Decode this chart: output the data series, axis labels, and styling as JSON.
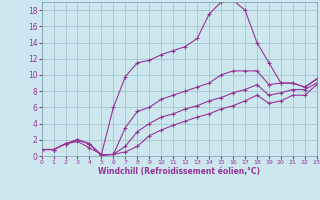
{
  "xlabel": "Windchill (Refroidissement éolien,°C)",
  "bg_color": "#cce8ee",
  "line_color": "#993399",
  "xlim": [
    0,
    23
  ],
  "ylim": [
    0,
    19
  ],
  "xticks": [
    0,
    1,
    2,
    3,
    4,
    5,
    6,
    7,
    8,
    9,
    10,
    11,
    12,
    13,
    14,
    15,
    16,
    17,
    18,
    19,
    20,
    21,
    22,
    23
  ],
  "yticks": [
    0,
    2,
    4,
    6,
    8,
    10,
    12,
    14,
    16,
    18
  ],
  "line1_x": [
    0,
    1,
    2,
    3,
    4,
    5,
    6,
    7,
    8,
    9,
    10,
    11,
    12,
    13,
    14,
    15,
    16,
    17,
    18,
    19,
    20,
    21,
    22,
    23
  ],
  "line1_y": [
    0.8,
    0.8,
    1.5,
    1.8,
    1.0,
    0.2,
    6.0,
    9.8,
    11.5,
    11.8,
    12.5,
    13.0,
    13.5,
    14.5,
    17.5,
    19.0,
    19.2,
    18.0,
    14.0,
    11.5,
    9.0,
    9.0,
    8.5,
    9.5
  ],
  "line2_x": [
    0,
    1,
    2,
    3,
    4,
    5,
    6,
    7,
    8,
    9,
    10,
    11,
    12,
    13,
    14,
    15,
    16,
    17,
    18,
    19,
    20,
    21,
    22,
    23
  ],
  "line2_y": [
    0.8,
    0.8,
    1.5,
    2.0,
    1.5,
    0.1,
    0.2,
    3.5,
    5.5,
    6.0,
    7.0,
    7.5,
    8.0,
    8.5,
    9.0,
    10.0,
    10.5,
    10.5,
    10.5,
    8.8,
    9.0,
    9.0,
    8.5,
    9.5
  ],
  "line3_x": [
    0,
    1,
    2,
    3,
    4,
    5,
    6,
    7,
    8,
    9,
    10,
    11,
    12,
    13,
    14,
    15,
    16,
    17,
    18,
    19,
    20,
    21,
    22,
    23
  ],
  "line3_y": [
    0.8,
    0.8,
    1.5,
    2.0,
    1.5,
    0.1,
    0.2,
    1.2,
    3.0,
    4.0,
    4.8,
    5.2,
    5.8,
    6.2,
    6.8,
    7.2,
    7.8,
    8.2,
    8.8,
    7.5,
    7.8,
    8.2,
    8.2,
    9.0
  ],
  "line4_x": [
    0,
    1,
    2,
    3,
    4,
    5,
    6,
    7,
    8,
    9,
    10,
    11,
    12,
    13,
    14,
    15,
    16,
    17,
    18,
    19,
    20,
    21,
    22,
    23
  ],
  "line4_y": [
    0.8,
    0.8,
    1.5,
    2.0,
    1.5,
    0.1,
    0.2,
    0.5,
    1.2,
    2.5,
    3.2,
    3.8,
    4.3,
    4.8,
    5.2,
    5.8,
    6.2,
    6.8,
    7.5,
    6.5,
    6.8,
    7.5,
    7.5,
    8.8
  ]
}
